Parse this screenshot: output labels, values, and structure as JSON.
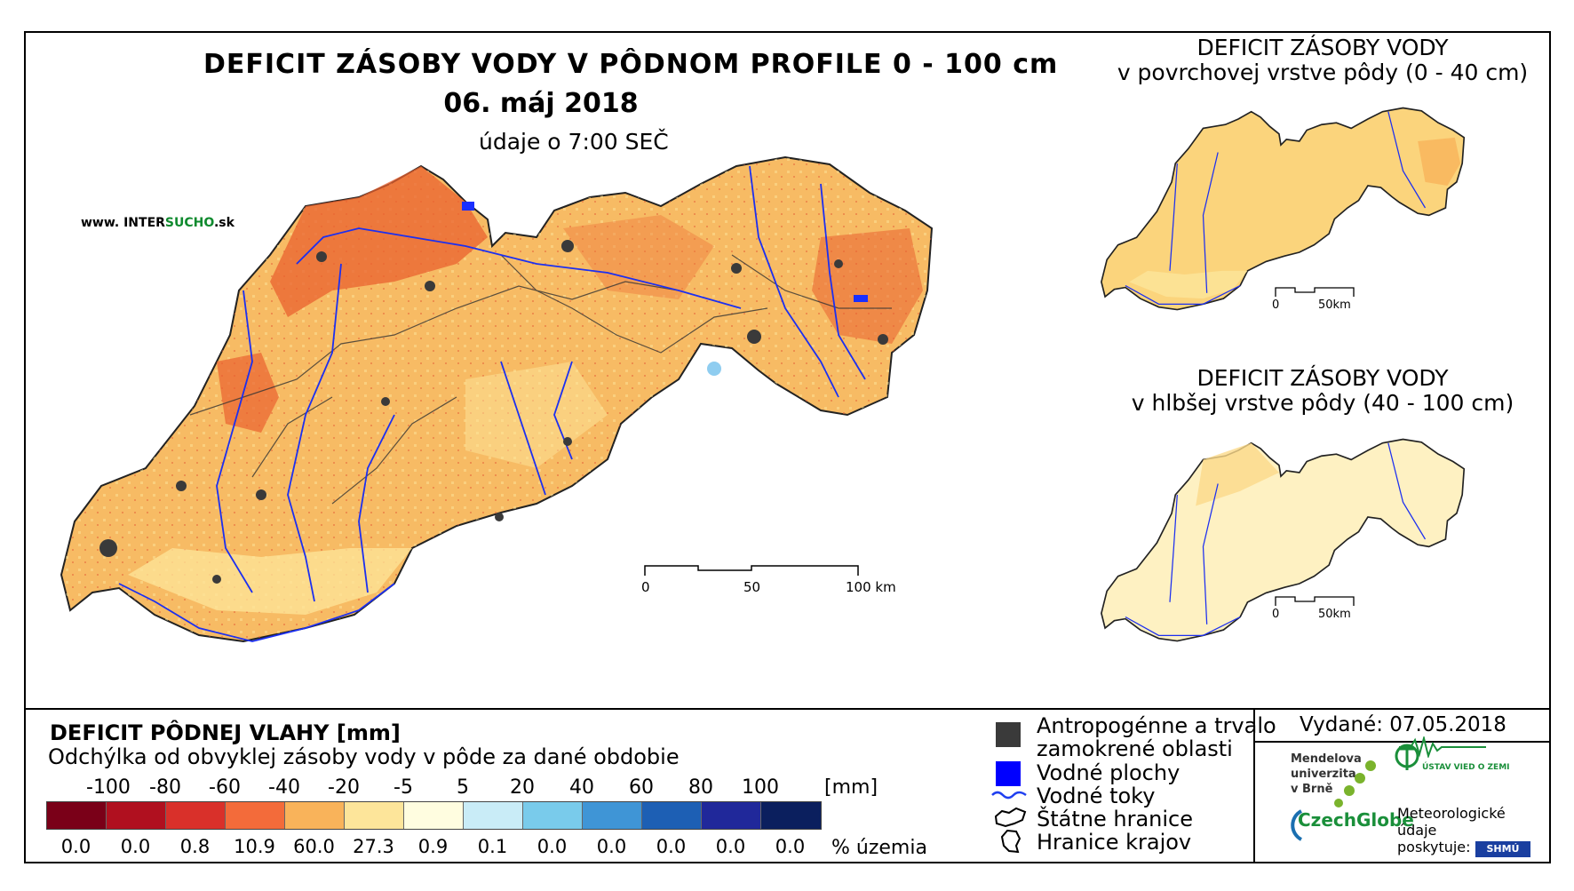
{
  "main_map": {
    "title": "DEFICIT ZÁSOBY VODY V PÔDNOM PROFILE 0 - 100 cm",
    "date": "06. máj 2018",
    "time": "údaje o 7:00 SEČ",
    "source_url_prefix": "www. INTER",
    "source_url_accent": "SUCHO",
    "source_url_suffix": ".sk",
    "scalebar": [
      "0",
      "50",
      "100 km"
    ]
  },
  "inset_top": {
    "title_line1": "DEFICIT ZÁSOBY VODY",
    "title_line2": "v povrchovej vrstve pôdy (0 - 40 cm)",
    "scalebar": [
      "0",
      "50km"
    ]
  },
  "inset_bottom": {
    "title_line1": "DEFICIT ZÁSOBY VODY",
    "title_line2": "v hlbšej vrstve pôdy (40 - 100 cm)",
    "scalebar": [
      "0",
      "50km"
    ]
  },
  "legend": {
    "title": "DEFICIT PÔDNEJ VLAHY [mm]",
    "subtitle": "Odchýlka od obvyklej zásoby vody v pôde za dané obdobie",
    "thresholds": [
      "-100",
      "-80",
      "-60",
      "-40",
      "-20",
      "-5",
      "5",
      "20",
      "40",
      "60",
      "80",
      "100"
    ],
    "unit": "[mm]",
    "class_colors": [
      "#7a0018",
      "#b0101f",
      "#d9302a",
      "#f36b3a",
      "#f9b35a",
      "#fde59a",
      "#fffde0",
      "#c9ecf7",
      "#79cbeb",
      "#3f95d6",
      "#1d5fb4",
      "#20289a",
      "#0b1f5e"
    ],
    "percentages": [
      "0.0",
      "0.0",
      "0.8",
      "10.9",
      "60.0",
      "27.3",
      "0.9",
      "0.1",
      "0.0",
      "0.0",
      "0.0",
      "0.0",
      "0.0"
    ],
    "percent_label": "% územia"
  },
  "symbols": {
    "anthropogenic_line1": "Antropogénne a trvalo",
    "anthropogenic_line2": "zamokrené oblasti",
    "water_bodies": "Vodné plochy",
    "rivers": "Vodné toky",
    "state_border": "Štátne hranice",
    "region_border": "Hranice krajov",
    "colors": {
      "anthropogenic": "#3a3a3a",
      "water": "#0000ff",
      "river": "#1f3ff0"
    }
  },
  "issued": "Vydané: 07.05.2018",
  "credits": {
    "mendel_line1": "Mendelova",
    "mendel_line2": "univerzita",
    "mendel_line3": "v Brně",
    "czechglobe": "CzechGlobe",
    "institute": "ÚSTAV VIED O ZEMI",
    "meteo_line1": "Meteorologické",
    "meteo_line2": "údaje",
    "meteo_line3": "poskytuje:",
    "shmu": "SHMÚ"
  }
}
